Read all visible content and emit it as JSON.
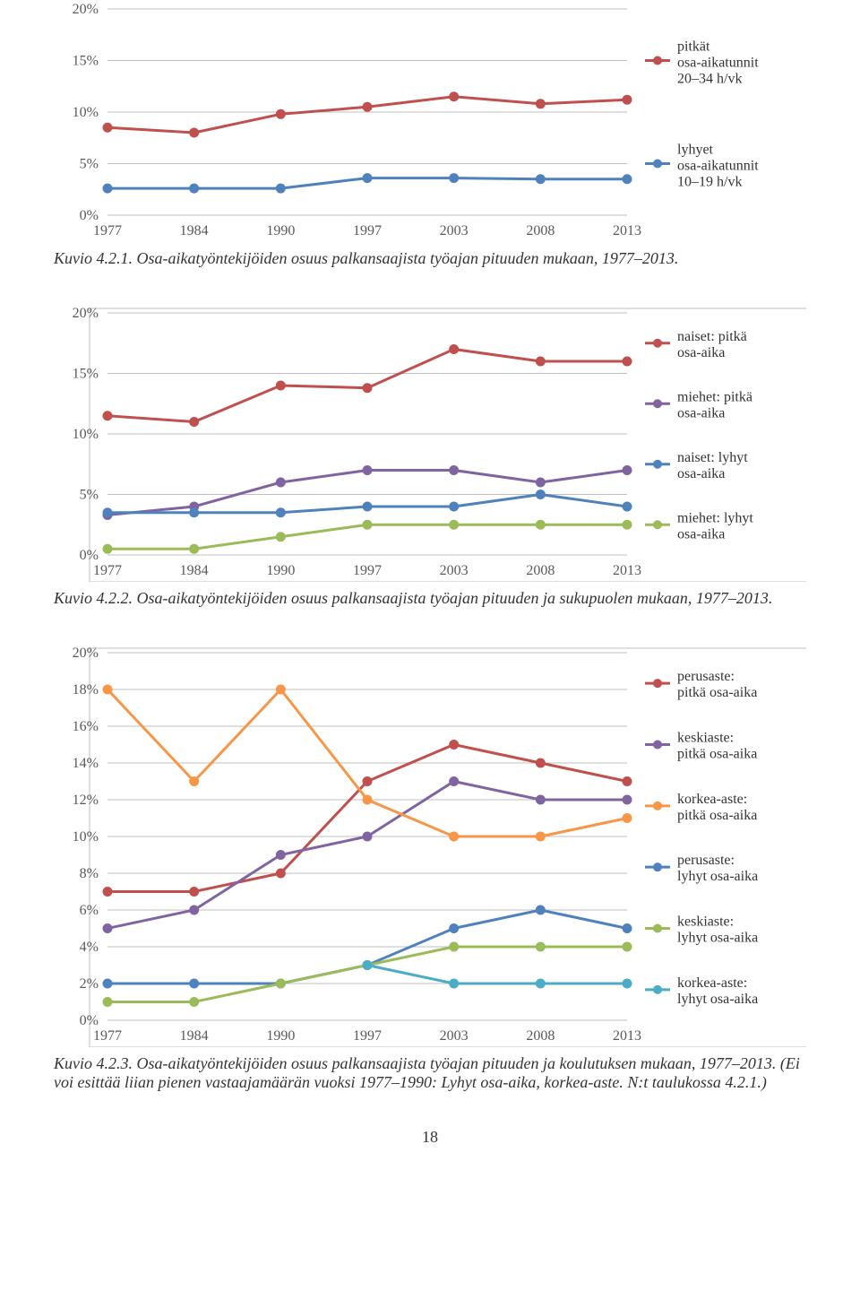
{
  "page_number": "18",
  "chart1": {
    "type": "line",
    "categories": [
      "1977",
      "1984",
      "1990",
      "1997",
      "2003",
      "2008",
      "2013"
    ],
    "ylim": [
      0,
      20
    ],
    "ytick_step": 5,
    "ytick_labels": [
      "0%",
      "5%",
      "10%",
      "15%",
      "20%"
    ],
    "background": "#ffffff",
    "grid_color": "#bfbfbf",
    "axis_label_color": "#595959",
    "axis_fontsize": 16,
    "marker_radius": 5,
    "line_width": 3,
    "legend_fontsize": 16,
    "series": [
      {
        "label": "pitkät osa-aikatunnit 20–34 h/vk",
        "color": "#c0504d",
        "values": [
          8.5,
          8,
          9.8,
          10.5,
          11.5,
          10.8,
          11.2
        ]
      },
      {
        "label": "lyhyet osa-aikatunnit 10–19 h/vk",
        "color": "#4f81bd",
        "values": [
          2.6,
          2.6,
          2.6,
          3.6,
          3.6,
          3.5,
          3.5
        ]
      }
    ],
    "caption": "Kuvio 4.2.1. Osa-aikatyöntekijöiden osuus palkansaajista työajan pituuden mukaan, 1977–2013."
  },
  "chart2": {
    "type": "line",
    "categories": [
      "1977",
      "1984",
      "1990",
      "1997",
      "2003",
      "2008",
      "2013"
    ],
    "ylim": [
      0,
      20
    ],
    "ytick_step": 5,
    "ytick_labels": [
      "0%",
      "5%",
      "10%",
      "15%",
      "20%"
    ],
    "background": "#ffffff",
    "grid_color": "#bfbfbf",
    "border_color": "#bfbfbf",
    "axis_label_color": "#595959",
    "axis_fontsize": 16,
    "marker_radius": 5,
    "line_width": 3,
    "legend_fontsize": 16,
    "series": [
      {
        "label": "naiset: pitkä osa-aika",
        "color": "#c0504d",
        "values": [
          11.5,
          11,
          14,
          13.8,
          17,
          16,
          16
        ]
      },
      {
        "label": "miehet: pitkä osa-aika",
        "color": "#8064a2",
        "values": [
          3.3,
          4,
          6,
          7,
          7,
          6,
          7
        ]
      },
      {
        "label": "naiset: lyhyt osa-aika",
        "color": "#4f81bd",
        "values": [
          3.5,
          3.5,
          3.5,
          4,
          4,
          5,
          4
        ]
      },
      {
        "label": "miehet: lyhyt osa-aika",
        "color": "#9bbb59",
        "values": [
          0.5,
          0.5,
          1.5,
          2.5,
          2.5,
          2.5,
          2.5
        ]
      }
    ],
    "caption": "Kuvio 4.2.2. Osa-aikatyöntekijöiden osuus palkansaajista työajan pituuden ja sukupuolen mukaan, 1977–2013."
  },
  "chart3": {
    "type": "line",
    "categories": [
      "1977",
      "1984",
      "1990",
      "1997",
      "2003",
      "2008",
      "2013"
    ],
    "ylim": [
      0,
      20
    ],
    "ytick_step": 2,
    "ytick_labels": [
      "0%",
      "2%",
      "4%",
      "6%",
      "8%",
      "10%",
      "12%",
      "14%",
      "16%",
      "18%",
      "20%"
    ],
    "background": "#ffffff",
    "grid_color": "#bfbfbf",
    "border_color": "#bfbfbf",
    "axis_label_color": "#595959",
    "axis_fontsize": 16,
    "marker_radius": 5,
    "line_width": 3,
    "legend_fontsize": 16,
    "series": [
      {
        "label": "perusaste: pitkä osa-aika",
        "color": "#c0504d",
        "values": [
          7,
          7,
          8,
          13,
          15,
          14,
          13
        ]
      },
      {
        "label": "keskiaste: pitkä osa-aika",
        "color": "#8064a2",
        "values": [
          5,
          6,
          9,
          10,
          13,
          12,
          12
        ]
      },
      {
        "label": "korkea-aste: pitkä osa-aika",
        "color": "#f79646",
        "values": [
          18,
          13,
          18,
          12,
          10,
          10,
          11
        ]
      },
      {
        "label": "perusaste: lyhyt osa-aika",
        "color": "#4f81bd",
        "values": [
          2,
          2,
          2,
          3,
          5,
          6,
          5
        ]
      },
      {
        "label": "keskiaste: lyhyt osa-aika",
        "color": "#9bbb59",
        "values": [
          1,
          1,
          2,
          3,
          4,
          4,
          4
        ]
      },
      {
        "label": "korkea-aste: lyhyt osa-aika",
        "color": "#4bacc6",
        "values": [
          null,
          null,
          null,
          3,
          2,
          2,
          2
        ]
      }
    ],
    "caption": "Kuvio 4.2.3. Osa-aikatyöntekijöiden osuus palkansaajista työajan pituuden ja koulutuksen mukaan, 1977–2013. (Ei voi esittää liian pienen vastaajamäärän vuoksi 1977–1990: Lyhyt osa-aika, korkea-aste. N:t taulukossa 4.2.1.)"
  }
}
